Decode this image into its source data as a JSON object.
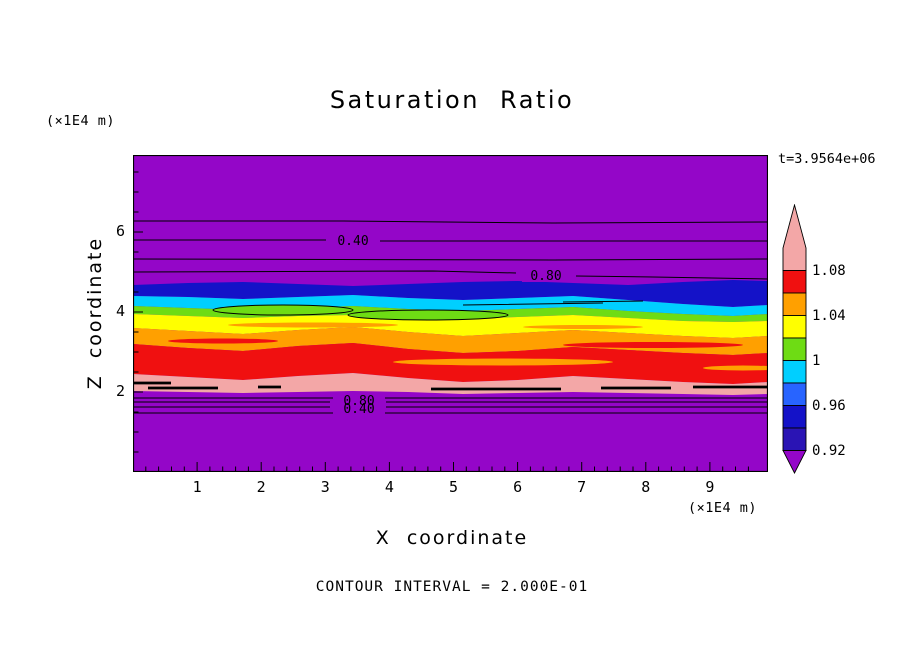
{
  "chart_data": {
    "type": "heatmap",
    "subtype": "filled contour plot (saturation ratio field, horizontally layered)",
    "title": "Saturation Ratio",
    "xlabel": "X coordinate",
    "ylabel": "Z coordinate",
    "units_label": "(×1E4 m)",
    "time_annotation": "t=3.9564e+06",
    "contour_interval": 0.2,
    "contour_interval_text": "CONTOUR INTERVAL = 2.000E-01",
    "x_ticks": [
      1,
      2,
      3,
      4,
      5,
      6,
      7,
      8,
      9
    ],
    "z_ticks": [
      2,
      4,
      6
    ],
    "x_range": [
      0,
      9.9
    ],
    "z_range": [
      0,
      7.9
    ],
    "grid": false,
    "legend_position": "right colorbar with arrow ends",
    "colorbar": {
      "tick_labels": [
        "1.08",
        "1.04",
        "1",
        "0.96",
        "0.92"
      ],
      "segment_colors_top_to_bottom": [
        "#F3A7A7",
        "#F01010",
        "#FFA000",
        "#FFFF00",
        "#6EDC14",
        "#00CFFF",
        "#2864FF",
        "#1412C8",
        "#2A14B4",
        "#9406C8"
      ],
      "segment_values_top_to_bottom": [
        "> 1.08",
        "1.06-1.08",
        "1.04-1.06",
        "1.02-1.04",
        "1.00-1.02",
        "0.98-1.00",
        "0.96-0.98",
        "0.94-0.96",
        "0.92-0.94",
        "< 0.92"
      ]
    },
    "line_contour_labels": {
      "upper_040": "0.40",
      "upper_080": "0.80",
      "lower_080": "0.80",
      "lower_040": "0.40"
    },
    "bands": [
      {
        "z_from": 5.0,
        "z_to": 7.9,
        "saturation": "< 0.92, line contours 0.2-0.8 increasing downward",
        "color": "#9406C8"
      },
      {
        "z_from": 4.4,
        "z_to": 5.0,
        "saturation": "0.92-0.96",
        "color": "#1412C8"
      },
      {
        "z_from": 4.1,
        "z_to": 4.4,
        "saturation": "0.96-1.00",
        "color": "#00CFFF"
      },
      {
        "z_from": 3.9,
        "z_to": 4.1,
        "saturation": "1.00-1.02",
        "color": "#6EDC14"
      },
      {
        "z_from": 3.5,
        "z_to": 3.9,
        "saturation": "1.02-1.04",
        "color": "#FFFF00"
      },
      {
        "z_from": 3.1,
        "z_to": 3.5,
        "saturation": "1.04-1.06",
        "color": "#FFA000"
      },
      {
        "z_from": 2.4,
        "z_to": 3.1,
        "saturation": "1.06-1.08",
        "color": "#F01010"
      },
      {
        "z_from": 2.0,
        "z_to": 2.4,
        "saturation": "> 1.08, dashed line contour fragments",
        "color": "#F3A7A7"
      },
      {
        "z_from": 0.0,
        "z_to": 2.0,
        "saturation": "< 0.92, collapsed line contours 0.80/0.40",
        "color": "#9406C8"
      }
    ]
  }
}
